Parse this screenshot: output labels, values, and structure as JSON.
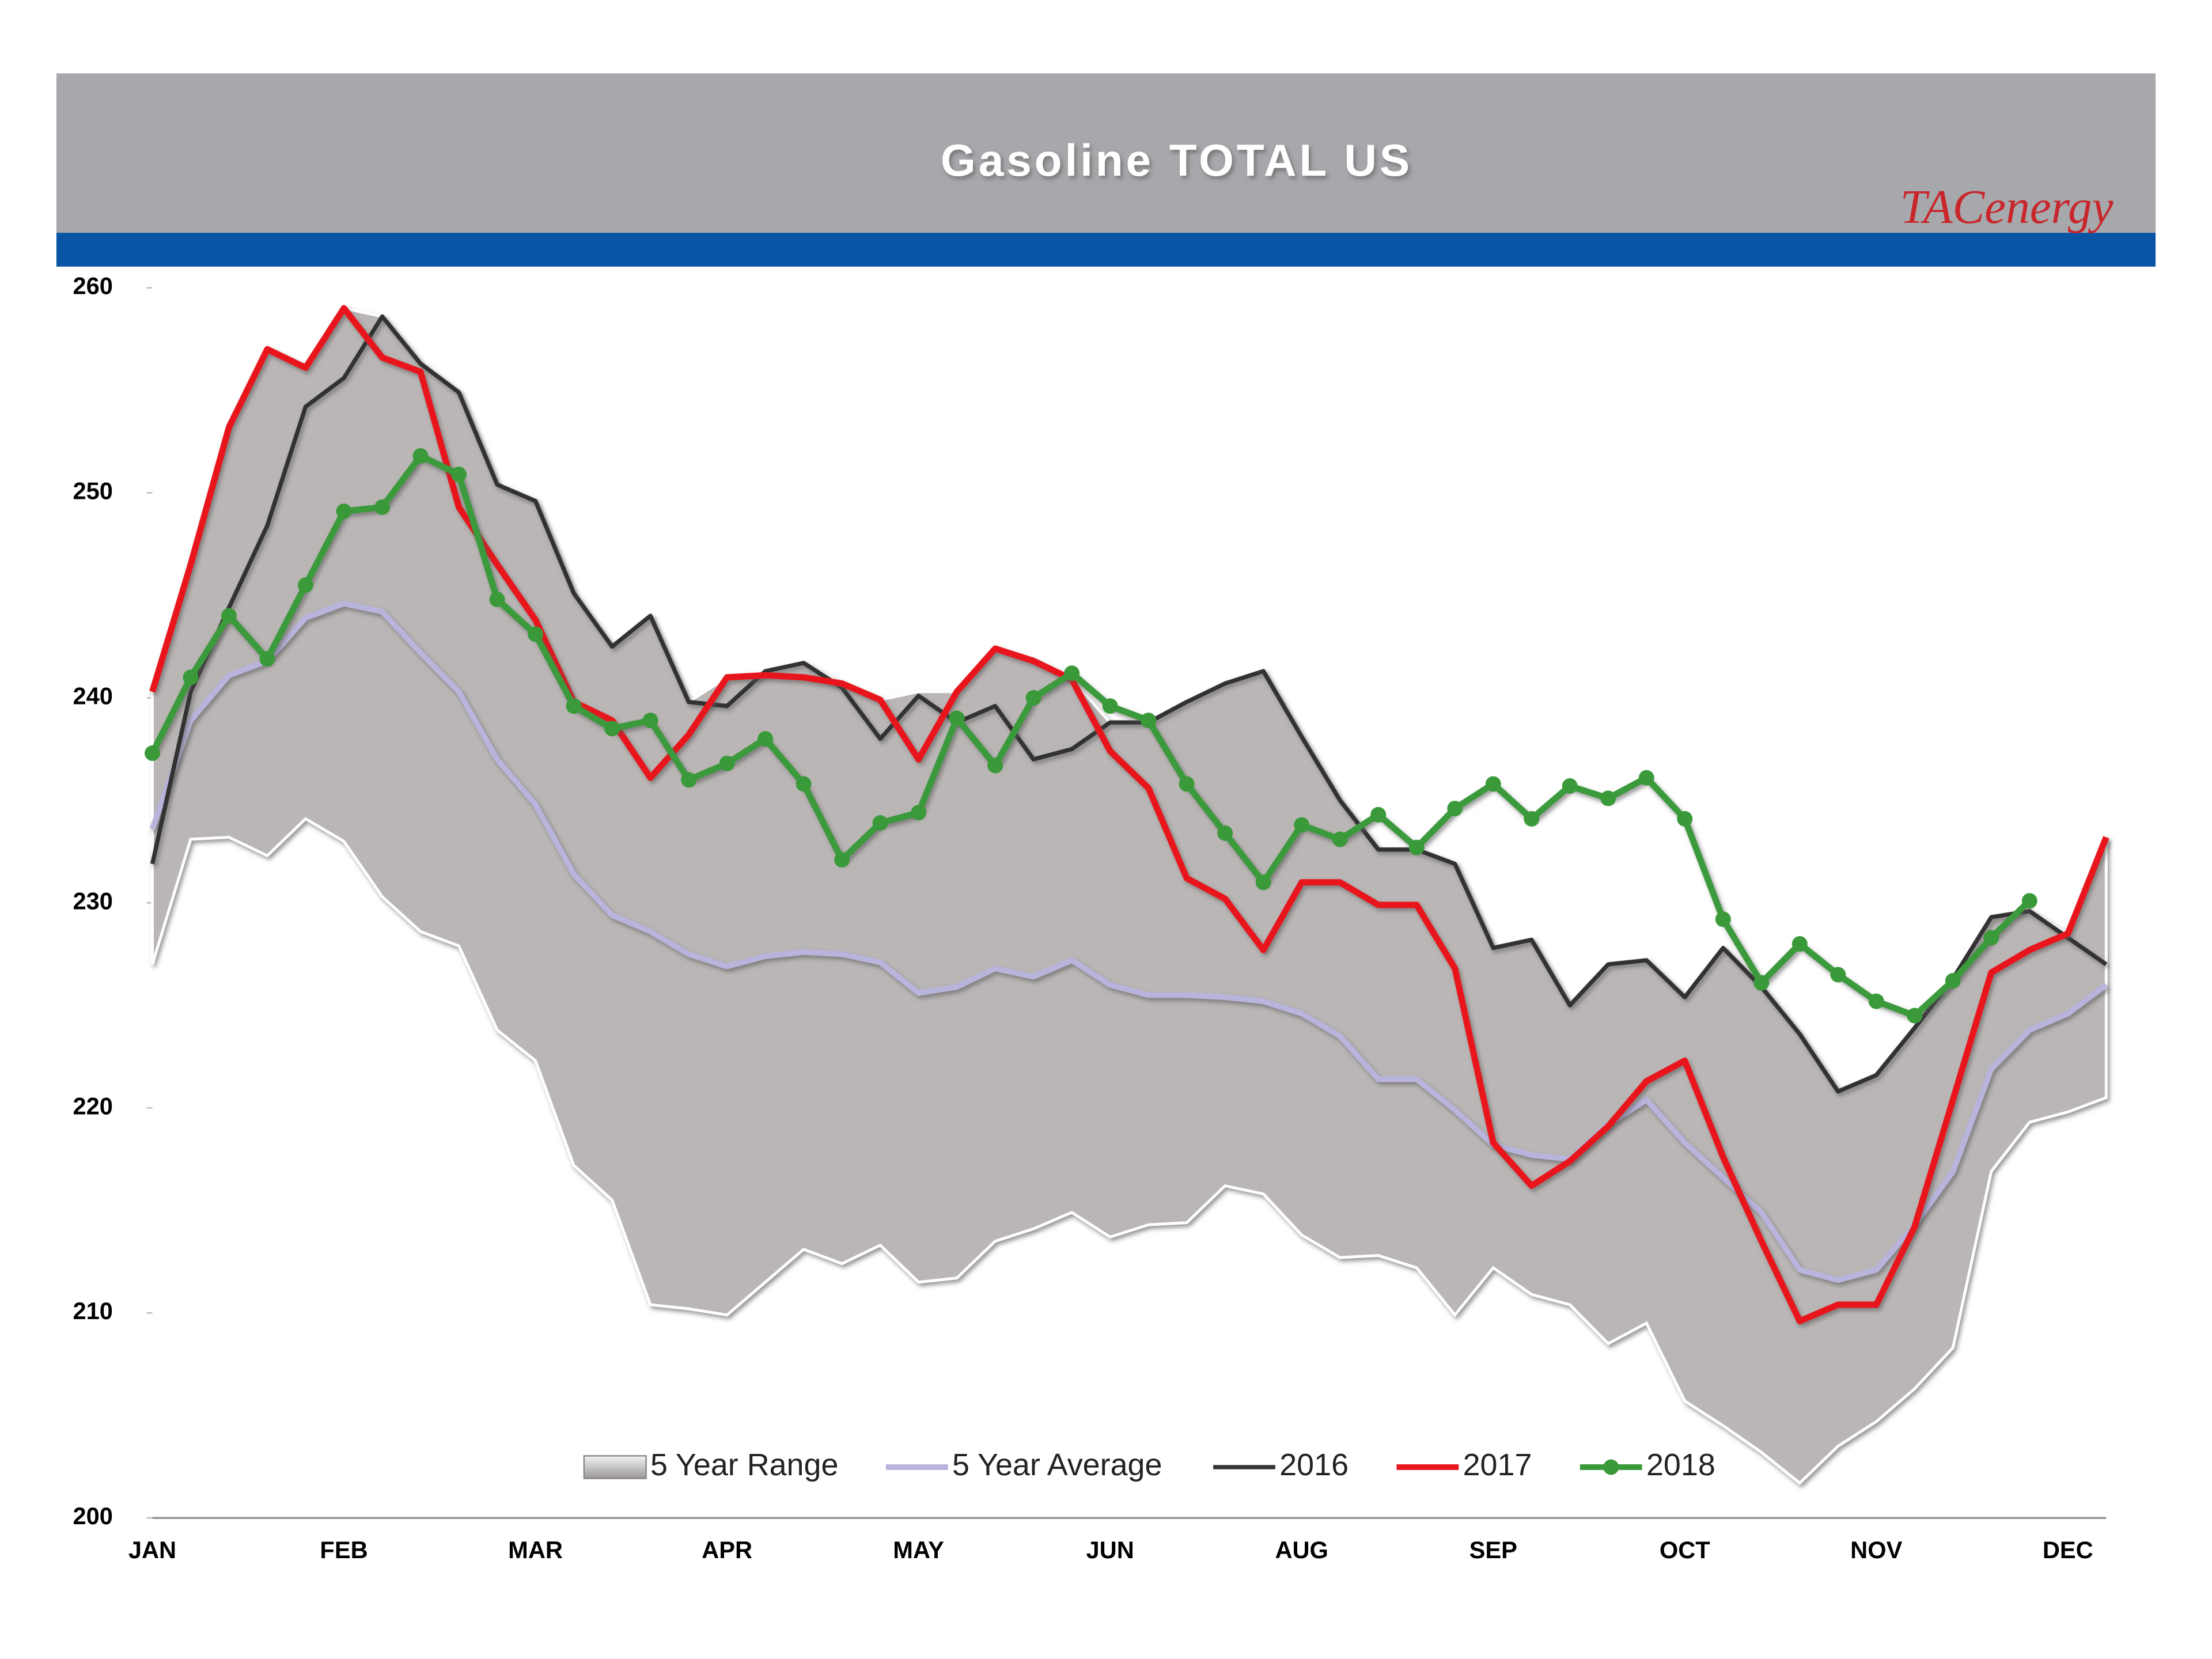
{
  "chart_data": {
    "type": "line",
    "title": "Gasoline  TOTAL US",
    "brand": "TACenergy",
    "categories": [
      "JAN",
      null,
      null,
      null,
      null,
      "FEB",
      null,
      null,
      null,
      null,
      "MAR",
      null,
      null,
      null,
      null,
      "APR",
      null,
      null,
      null,
      null,
      "MAY",
      null,
      null,
      null,
      null,
      "JUN",
      null,
      null,
      null,
      null,
      "AUG",
      null,
      null,
      null,
      null,
      "SEP",
      null,
      null,
      null,
      null,
      "OCT",
      null,
      null,
      null,
      null,
      "NOV",
      null,
      null,
      null,
      null,
      "DEC",
      null
    ],
    "ylim": [
      200,
      260
    ],
    "yticks": [
      200,
      210,
      220,
      230,
      240,
      250,
      260
    ],
    "range": {
      "name": "5 Year Range",
      "color": "#bbb6b6",
      "low": [
        227,
        233.1,
        233.2,
        232.3,
        234.1,
        233.0,
        230.3,
        228.6,
        227.9,
        223.8,
        222.3,
        217.2,
        215.5,
        210.4,
        210.2,
        209.9,
        211.5,
        213.1,
        212.4,
        213.3,
        211.5,
        211.7,
        213.5,
        214.1,
        214.9,
        213.7,
        214.3,
        214.4,
        216.2,
        215.8,
        213.8,
        212.7,
        212.8,
        212.2,
        209.9,
        212.2,
        210.9,
        210.4,
        208.5,
        209.5,
        205.7,
        204.5,
        203.2,
        201.7,
        203.5,
        204.7,
        206.3,
        208.3,
        216.9,
        219.3,
        219.8,
        220.5
      ],
      "high": [
        240.3,
        246.5,
        253.2,
        257.0,
        256.1,
        259.0,
        258.6,
        256.3,
        254.9,
        250.4,
        249.6,
        245.1,
        242.5,
        244.0,
        239.8,
        241.0,
        241.3,
        241.7,
        240.7,
        239.9,
        240.3,
        240.3,
        242.4,
        241.8,
        240.9,
        238.8,
        238.8,
        239.8,
        240.7,
        241.3,
        238.1,
        235.0,
        232.6,
        232.6,
        231.9,
        227.8,
        228.2,
        225.0,
        227.0,
        227.2,
        225.4,
        227.8,
        225.9,
        223.6,
        220.8,
        221.6,
        223.9,
        226.3,
        229.3,
        229.6,
        228.5,
        233.2
      ]
    },
    "series": [
      {
        "name": "5 Year Average",
        "color": "#b8b4dc",
        "values": [
          233.6,
          238.9,
          241.1,
          241.8,
          243.9,
          244.6,
          244.2,
          242.2,
          240.3,
          237.0,
          234.8,
          231.4,
          229.4,
          228.6,
          227.5,
          226.9,
          227.4,
          227.6,
          227.5,
          227.1,
          225.6,
          225.9,
          226.8,
          226.4,
          227.2,
          226.0,
          225.5,
          225.5,
          225.4,
          225.2,
          224.6,
          223.5,
          221.4,
          221.4,
          219.9,
          218.2,
          217.7,
          217.5,
          219.2,
          220.4,
          218.3,
          216.6,
          214.9,
          212.1,
          211.6,
          212.1,
          214.3,
          216.9,
          221.9,
          223.8,
          224.6,
          226.0
        ]
      },
      {
        "name": "2016",
        "color": "#333333",
        "values": [
          231.9,
          240.3,
          244.4,
          248.4,
          254.2,
          255.6,
          258.6,
          256.3,
          254.9,
          250.4,
          249.6,
          245.1,
          242.5,
          244.0,
          239.8,
          239.6,
          241.3,
          241.7,
          240.5,
          238.0,
          240.1,
          238.8,
          239.6,
          237.0,
          237.5,
          238.8,
          238.8,
          239.8,
          240.7,
          241.3,
          238.1,
          235.0,
          232.6,
          232.6,
          231.9,
          227.8,
          228.2,
          225.0,
          227.0,
          227.2,
          225.4,
          227.8,
          225.9,
          223.6,
          220.8,
          221.6,
          223.9,
          226.3,
          229.3,
          229.6,
          228.3,
          227.0
        ]
      },
      {
        "name": "2017",
        "color": "#e8181c",
        "values": [
          240.3,
          246.5,
          253.2,
          257.0,
          256.1,
          259.0,
          256.6,
          255.9,
          249.3,
          246.5,
          243.8,
          239.8,
          238.9,
          236.1,
          238.2,
          241.0,
          241.1,
          241.0,
          240.7,
          239.9,
          237.0,
          240.3,
          242.4,
          241.8,
          240.9,
          237.4,
          235.6,
          231.2,
          230.2,
          227.7,
          231.0,
          231.0,
          229.9,
          229.9,
          226.8,
          218.3,
          216.2,
          217.4,
          219.1,
          221.3,
          222.3,
          217.6,
          213.5,
          209.6,
          210.4,
          210.4,
          214.2,
          220.4,
          226.6,
          227.7,
          228.5,
          233.2
        ]
      },
      {
        "name": "2018",
        "color": "#3a9a3a",
        "marker": "circle",
        "values": [
          237.3,
          241.0,
          244.0,
          241.9,
          245.5,
          249.1,
          249.3,
          251.8,
          250.9,
          244.8,
          243.1,
          239.6,
          238.5,
          238.9,
          236.0,
          236.8,
          238.0,
          235.8,
          232.1,
          233.9,
          234.4,
          239.0,
          236.7,
          240.0,
          241.2,
          239.6,
          238.9,
          235.8,
          233.4,
          231.0,
          233.8,
          233.1,
          234.3,
          232.7,
          234.6,
          235.8,
          234.1,
          235.7,
          235.1,
          236.1,
          234.1,
          229.2,
          226.1,
          228.0,
          226.5,
          225.2,
          224.5,
          226.2,
          228.3,
          230.1,
          null,
          null
        ]
      }
    ]
  }
}
